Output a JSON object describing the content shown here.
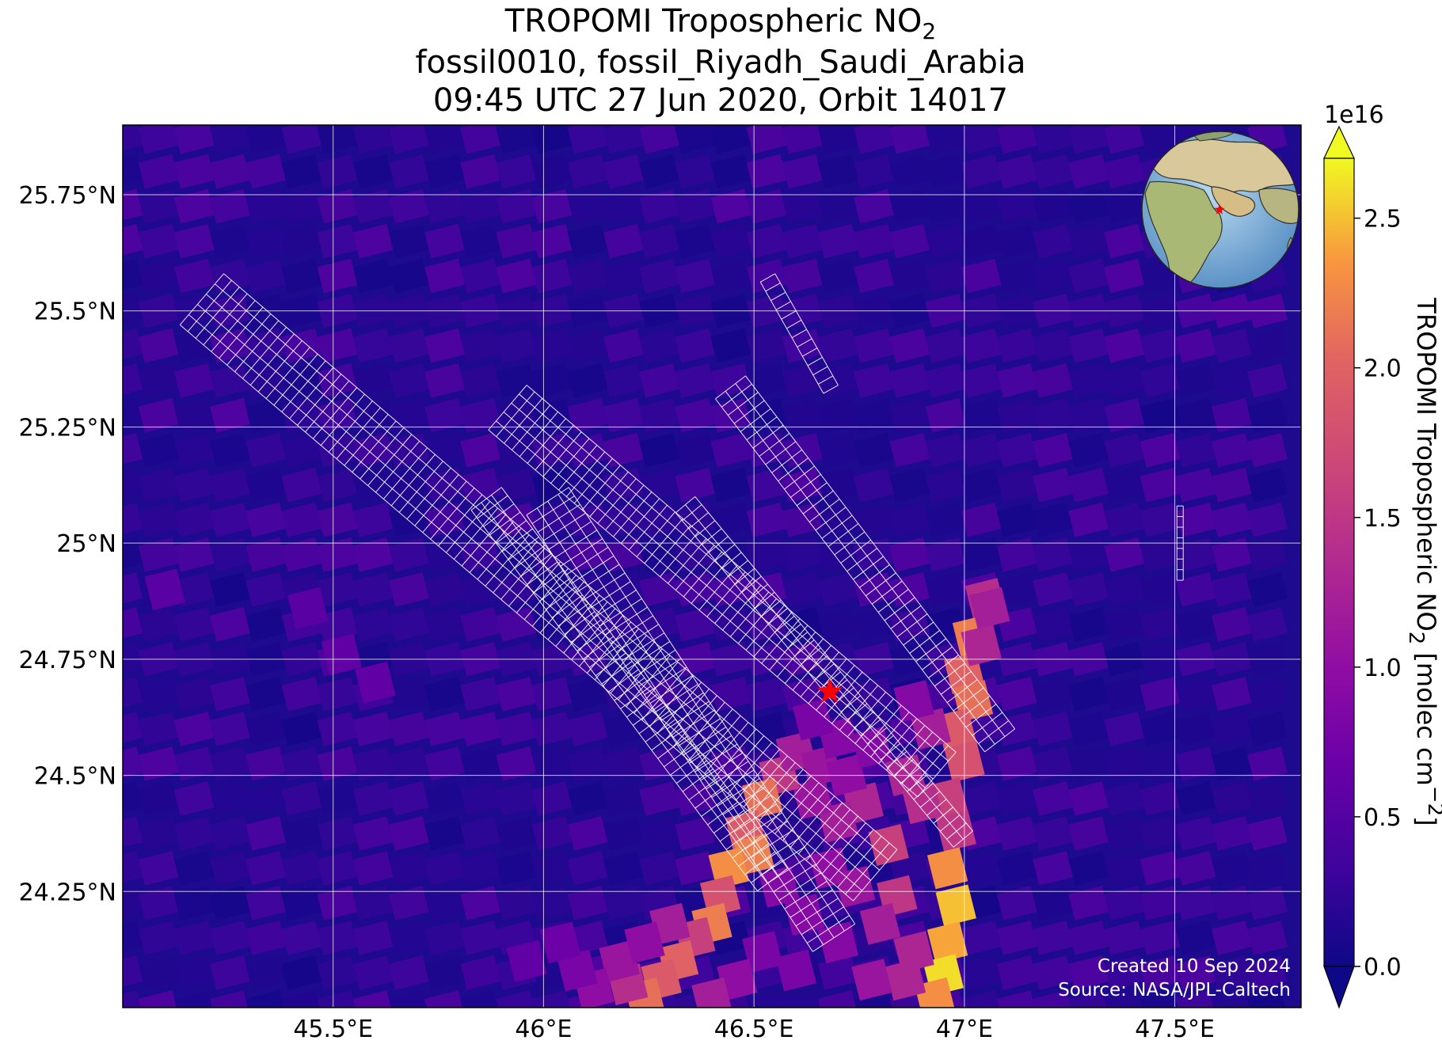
{
  "title": {
    "line1_prefix": "TROPOMI Tropospheric NO",
    "line1_sub": "2",
    "line2": "fossil0010, fossil_Riyadh_Saudi_Arabia",
    "line3": "09:45 UTC 27 Jun 2020, Orbit 14017"
  },
  "map": {
    "lon_range": [
      45.0,
      47.8
    ],
    "lat_range": [
      24.0,
      25.9
    ],
    "lon_ticks": [
      45.5,
      46.0,
      46.5,
      47.0,
      47.5
    ],
    "lon_tick_labels": [
      "45.5°E",
      "46°E",
      "46.5°E",
      "47°E",
      "47.5°E"
    ],
    "lat_ticks": [
      24.25,
      24.5,
      24.75,
      25.0,
      25.25,
      25.5,
      25.75
    ],
    "lat_tick_labels": [
      "24.25°N",
      "24.5°N",
      "24.75°N",
      "25°N",
      "25.25°N",
      "25.5°N",
      "25.75°N"
    ],
    "gridlines": true,
    "site_marker": {
      "name": "Riyadh",
      "lon": 46.68,
      "lat": 24.68,
      "symbol": "star",
      "color": "#ff0000"
    },
    "inset_globe": "locator globe centred near the Arabian Peninsula with red star at site",
    "background_color": "#1b0a8c"
  },
  "colorbar": {
    "label_prefix": "TROPOMI Tropospheric NO",
    "label_sub": "2",
    "label_suffix_a": " [molec cm",
    "label_sup": "−2",
    "label_suffix_b": "]",
    "exponent": "1e16",
    "ticks": [
      0.0,
      0.5,
      1.0,
      1.5,
      2.0,
      2.5
    ],
    "tick_labels": [
      "0.0",
      "0.5",
      "1.0",
      "1.5",
      "2.0",
      "2.5"
    ],
    "range": [
      0.0,
      2.7
    ],
    "colormap": "plasma",
    "extend": "both"
  },
  "credits": {
    "created": "Created 10 Sep 2024",
    "source": "Source: NASA/JPL-Caltech"
  },
  "plume_pixels": [
    {
      "lon": 47.05,
      "lat": 24.88,
      "v": 1.4
    },
    {
      "lon": 47.02,
      "lat": 24.8,
      "v": 2.2
    },
    {
      "lon": 47.0,
      "lat": 24.72,
      "v": 2.0
    },
    {
      "lon": 47.02,
      "lat": 24.66,
      "v": 2.1
    },
    {
      "lon": 46.98,
      "lat": 24.6,
      "v": 1.9
    },
    {
      "lon": 47.0,
      "lat": 24.53,
      "v": 1.8
    },
    {
      "lon": 46.96,
      "lat": 24.45,
      "v": 1.6
    },
    {
      "lon": 46.98,
      "lat": 24.38,
      "v": 1.5
    },
    {
      "lon": 46.96,
      "lat": 24.3,
      "v": 2.3
    },
    {
      "lon": 46.98,
      "lat": 24.22,
      "v": 2.5
    },
    {
      "lon": 46.96,
      "lat": 24.14,
      "v": 2.4
    },
    {
      "lon": 46.95,
      "lat": 24.07,
      "v": 2.6
    },
    {
      "lon": 46.93,
      "lat": 24.02,
      "v": 2.3
    },
    {
      "lon": 46.88,
      "lat": 24.12,
      "v": 1.3
    },
    {
      "lon": 46.84,
      "lat": 24.24,
      "v": 1.5
    },
    {
      "lon": 46.82,
      "lat": 24.35,
      "v": 1.6
    },
    {
      "lon": 46.76,
      "lat": 24.44,
      "v": 1.3
    },
    {
      "lon": 46.7,
      "lat": 24.4,
      "v": 1.2
    },
    {
      "lon": 46.64,
      "lat": 24.45,
      "v": 1.1
    },
    {
      "lon": 46.56,
      "lat": 24.5,
      "v": 1.5
    },
    {
      "lon": 46.52,
      "lat": 24.45,
      "v": 2.1
    },
    {
      "lon": 46.48,
      "lat": 24.38,
      "v": 1.9
    },
    {
      "lon": 46.5,
      "lat": 24.33,
      "v": 2.2
    },
    {
      "lon": 46.44,
      "lat": 24.3,
      "v": 2.3
    },
    {
      "lon": 46.42,
      "lat": 24.24,
      "v": 1.8
    },
    {
      "lon": 46.4,
      "lat": 24.18,
      "v": 2.2
    },
    {
      "lon": 46.36,
      "lat": 24.15,
      "v": 1.6
    },
    {
      "lon": 46.32,
      "lat": 24.1,
      "v": 2.0
    },
    {
      "lon": 46.28,
      "lat": 24.06,
      "v": 1.9
    },
    {
      "lon": 46.24,
      "lat": 24.02,
      "v": 2.1
    },
    {
      "lon": 46.2,
      "lat": 24.05,
      "v": 1.4
    },
    {
      "lon": 46.18,
      "lat": 24.1,
      "v": 1.1
    },
    {
      "lon": 46.12,
      "lat": 24.04,
      "v": 1.0
    },
    {
      "lon": 46.08,
      "lat": 24.08,
      "v": 0.8
    },
    {
      "lon": 46.3,
      "lat": 24.18,
      "v": 1.2
    },
    {
      "lon": 46.24,
      "lat": 24.14,
      "v": 1.0
    },
    {
      "lon": 46.6,
      "lat": 24.55,
      "v": 1.2
    },
    {
      "lon": 46.66,
      "lat": 24.52,
      "v": 1.1
    },
    {
      "lon": 46.72,
      "lat": 24.5,
      "v": 1.0
    },
    {
      "lon": 46.78,
      "lat": 24.56,
      "v": 0.9
    },
    {
      "lon": 46.86,
      "lat": 24.5,
      "v": 1.3
    },
    {
      "lon": 46.9,
      "lat": 24.44,
      "v": 1.4
    },
    {
      "lon": 46.92,
      "lat": 24.6,
      "v": 1.2
    },
    {
      "lon": 46.88,
      "lat": 24.66,
      "v": 0.9
    },
    {
      "lon": 46.68,
      "lat": 24.3,
      "v": 1.0
    },
    {
      "lon": 46.74,
      "lat": 24.26,
      "v": 1.1
    },
    {
      "lon": 46.8,
      "lat": 24.18,
      "v": 1.2
    },
    {
      "lon": 46.86,
      "lat": 24.06,
      "v": 1.3
    },
    {
      "lon": 46.78,
      "lat": 24.06,
      "v": 1.1
    },
    {
      "lon": 46.7,
      "lat": 24.14,
      "v": 0.9
    },
    {
      "lon": 46.62,
      "lat": 24.2,
      "v": 0.9
    },
    {
      "lon": 46.56,
      "lat": 24.26,
      "v": 0.9
    },
    {
      "lon": 46.6,
      "lat": 24.08,
      "v": 0.8
    },
    {
      "lon": 46.52,
      "lat": 24.12,
      "v": 0.8
    },
    {
      "lon": 46.46,
      "lat": 24.06,
      "v": 1.0
    },
    {
      "lon": 46.4,
      "lat": 24.02,
      "v": 1.2
    },
    {
      "lon": 47.04,
      "lat": 24.78,
      "v": 1.3
    },
    {
      "lon": 47.06,
      "lat": 24.86,
      "v": 1.2
    },
    {
      "lon": 46.04,
      "lat": 24.14,
      "v": 0.7
    },
    {
      "lon": 45.96,
      "lat": 24.1,
      "v": 0.6
    },
    {
      "lon": 46.7,
      "lat": 24.58,
      "v": 0.9
    },
    {
      "lon": 46.64,
      "lat": 24.62,
      "v": 0.8
    },
    {
      "lon": 45.6,
      "lat": 24.7,
      "v": 0.6
    },
    {
      "lon": 45.52,
      "lat": 24.76,
      "v": 0.6
    },
    {
      "lon": 45.44,
      "lat": 24.86,
      "v": 0.55
    },
    {
      "lon": 45.1,
      "lat": 24.9,
      "v": 0.55
    }
  ],
  "footprint_swaths": [
    {
      "lon0": 45.24,
      "lat0": 25.58,
      "lon1": 46.84,
      "lat1": 24.34,
      "width": 0.16
    },
    {
      "lon0": 45.96,
      "lat0": 25.34,
      "lon1": 46.98,
      "lat1": 24.55,
      "width": 0.14
    },
    {
      "lon0": 45.9,
      "lat0": 25.12,
      "lon1": 46.58,
      "lat1": 24.3,
      "width": 0.09
    },
    {
      "lon0": 46.06,
      "lat0": 25.12,
      "lon1": 46.74,
      "lat1": 24.18,
      "width": 0.12
    },
    {
      "lon0": 46.48,
      "lat0": 25.36,
      "lon1": 47.12,
      "lat1": 24.6,
      "width": 0.09
    },
    {
      "lon0": 46.36,
      "lat0": 25.1,
      "lon1": 47.02,
      "lat1": 24.38,
      "width": 0.06
    },
    {
      "lon0": 46.55,
      "lat0": 25.58,
      "lon1": 46.7,
      "lat1": 25.34,
      "width": 0.04
    },
    {
      "lon0": 47.52,
      "lat0": 25.08,
      "lon1": 47.52,
      "lat1": 24.92,
      "width": 0.015
    }
  ]
}
